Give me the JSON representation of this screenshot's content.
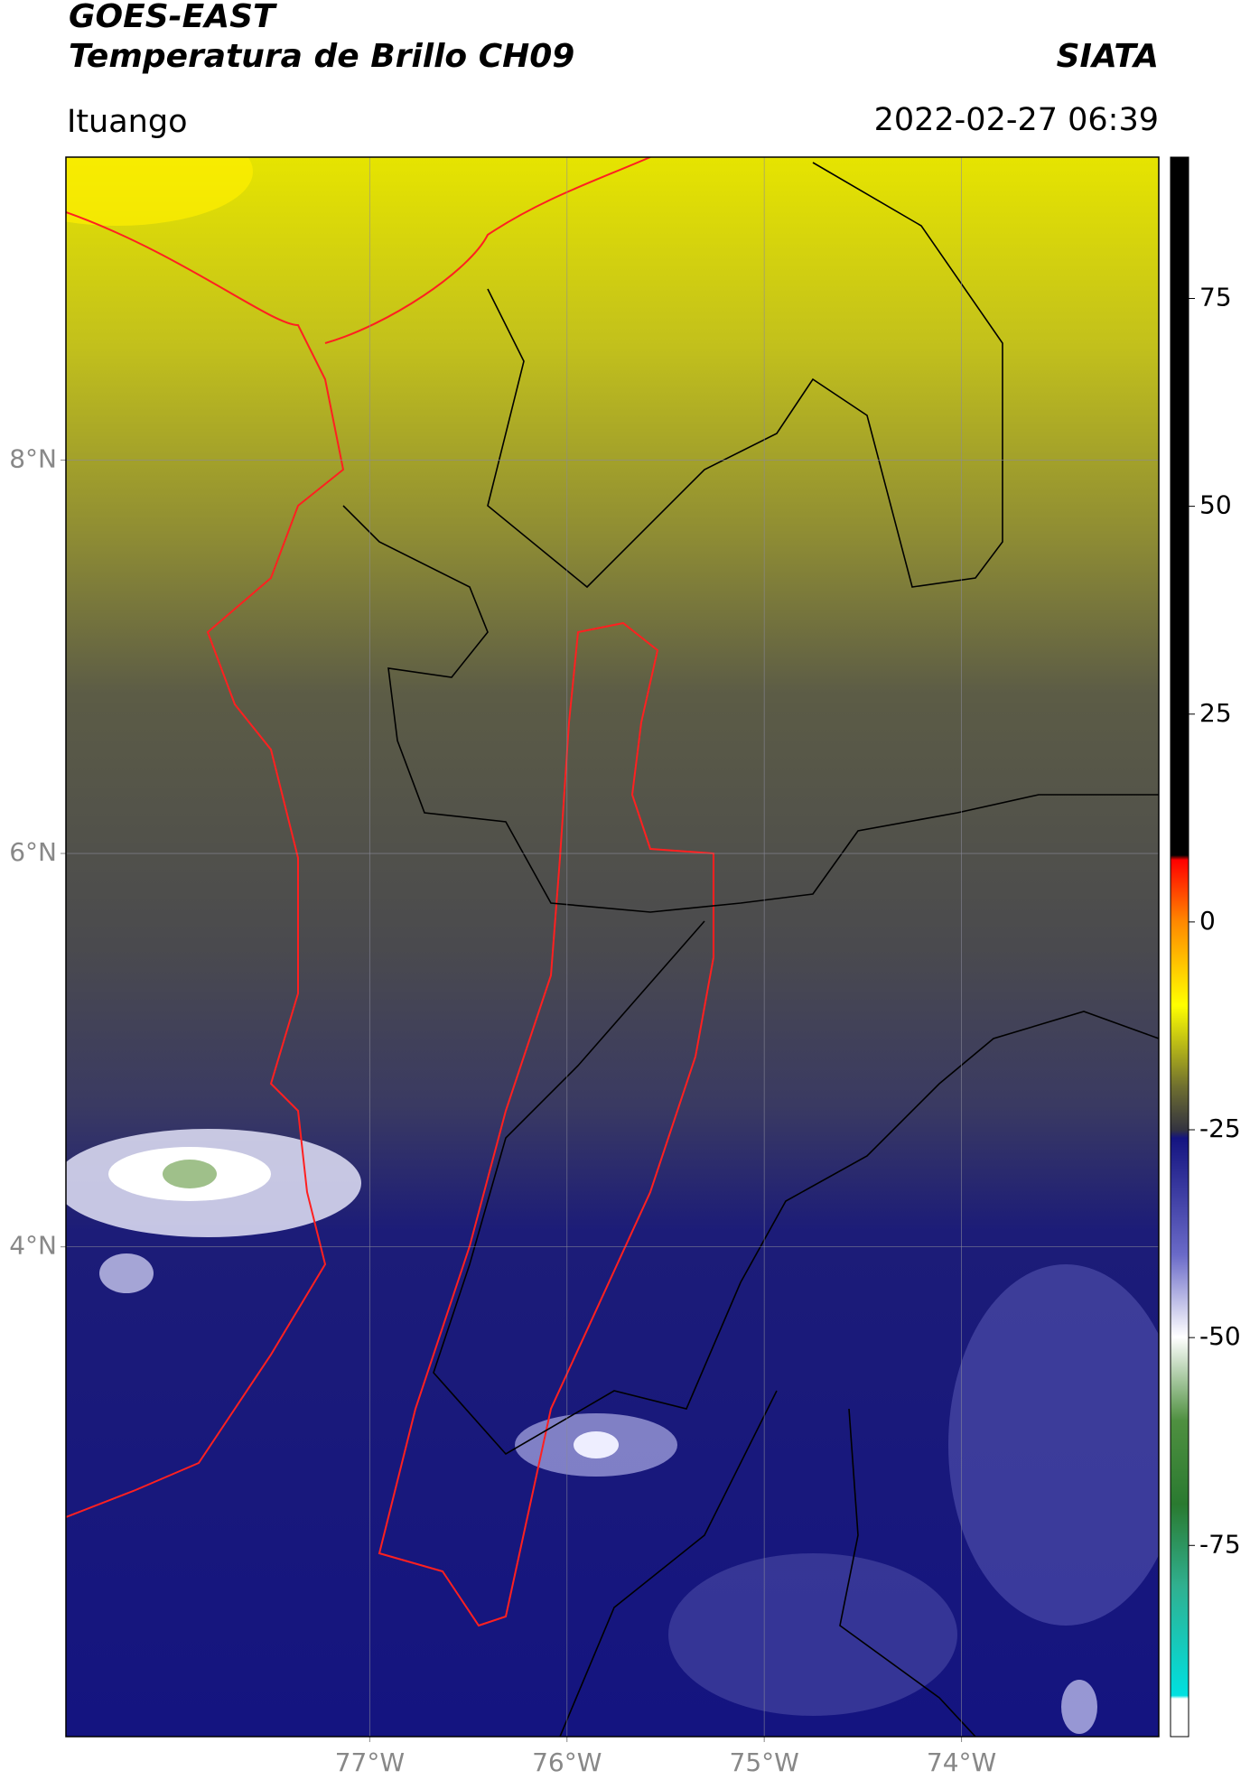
{
  "chart_data": {
    "type": "map",
    "title": "GOES-EAST",
    "subtitle": "Temperatura de Brillo CH09",
    "credit": "SIATA",
    "region": "Ituango",
    "timestamp": "2022-02-27 06:39",
    "xlim": [
      -78.54,
      -73.0
    ],
    "ylim": [
      1.51,
      9.54
    ],
    "xticks": [
      {
        "value": -77,
        "label": "77°W"
      },
      {
        "value": -76,
        "label": "76°W"
      },
      {
        "value": -75,
        "label": "75°W"
      },
      {
        "value": -74,
        "label": "74°W"
      }
    ],
    "yticks": [
      {
        "value": 4,
        "label": "4°N"
      },
      {
        "value": 6,
        "label": "6°N"
      },
      {
        "value": 8,
        "label": "8°N"
      }
    ],
    "grid": true,
    "colorbar": {
      "lim": [
        -98,
        92
      ],
      "ticks": [
        -75,
        -50,
        -25,
        0,
        25,
        50,
        75
      ]
    }
  }
}
